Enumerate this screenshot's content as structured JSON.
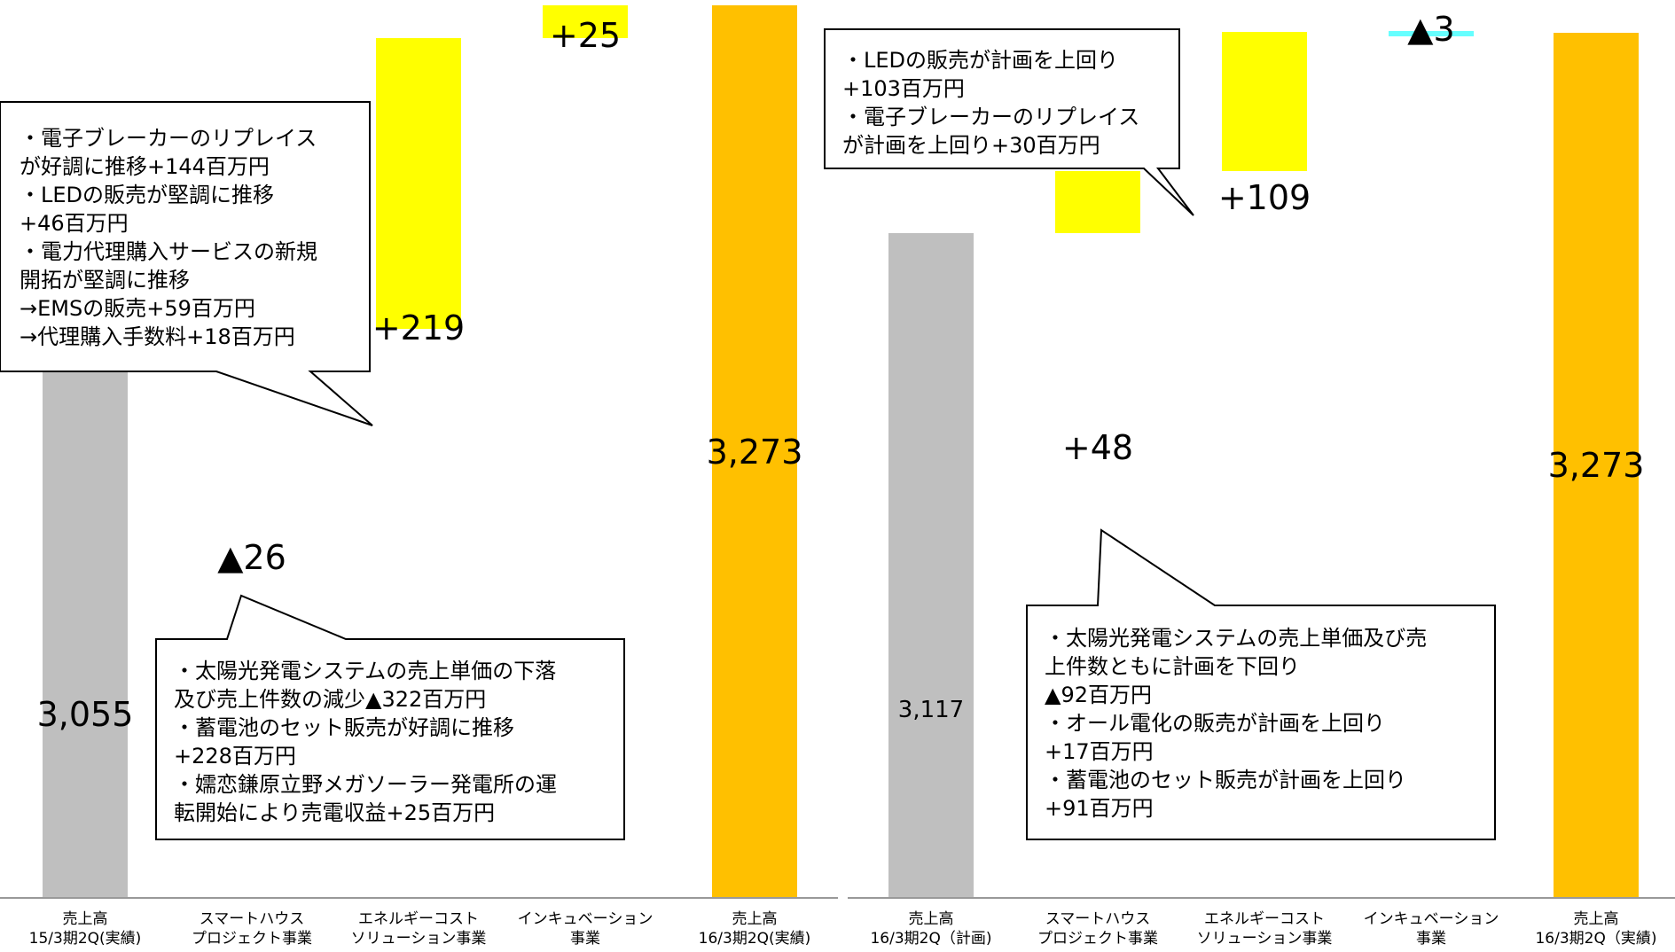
{
  "charts": [
    {
      "type": "bar",
      "subtype": "waterfall",
      "categories": [
        [
          "売上高",
          "15/3期2Q(実績)"
        ],
        [
          "スマートハウス",
          "プロジェクト事業"
        ],
        [
          "エネルギーコスト",
          "ソリューション事業"
        ],
        [
          "インキュベーション",
          "事業"
        ],
        [
          "売上高",
          "16/3期2Q(実績)"
        ]
      ],
      "values": [
        3055,
        -26,
        219,
        25,
        3273
      ],
      "labels": [
        "3,055",
        "▲26",
        "+219",
        "+25",
        "3,273"
      ],
      "kinds": [
        "total",
        "delta",
        "delta",
        "delta",
        "total"
      ],
      "callouts": [
        {
          "lines": [
            "・電子ブレーカーのリプレイス",
            "が好調に推移+144百万円",
            "・LEDの販売が堅調に推移",
            "+46百万円",
            "・電力代理購入サービスの新規",
            "開拓が堅調に推移",
            "→EMSの販売+59百万円",
            "→代理購入手数料+18百万円"
          ]
        },
        {
          "lines": [
            "・太陽光発電システムの売上単価の下落",
            "及び売上件数の減少▲322百万円",
            "・蓄電池のセット販売が好調に推移",
            "+228百万円",
            "・嬬恋鎌原立野メガソーラー発電所の運",
            "転開始により売電収益+25百万円"
          ]
        }
      ]
    },
    {
      "type": "bar",
      "subtype": "waterfall",
      "categories": [
        [
          "売上高",
          "16/3期2Q（計画)"
        ],
        [
          "スマートハウス",
          "プロジェクト事業"
        ],
        [
          "エネルギーコスト",
          "ソリューション事業"
        ],
        [
          "インキュベーション",
          "事業"
        ],
        [
          "売上高",
          "16/3期2Q（実績)"
        ]
      ],
      "values": [
        3117,
        48,
        109,
        -3,
        3273
      ],
      "labels": [
        "3,117",
        "+48",
        "+109",
        "▲3",
        "3,273"
      ],
      "kinds": [
        "total",
        "delta",
        "delta",
        "delta",
        "total"
      ],
      "callouts": [
        {
          "lines": [
            "・LEDの販売が計画を上回り",
            "+103百万円",
            "・電子ブレーカーのリプレイス",
            "が計画を上回り+30百万円"
          ]
        },
        {
          "lines": [
            "・太陽光発電システムの売上単価及び売",
            "上件数ともに計画を下回り",
            "▲92百万円",
            "・オール電化の販売が計画を上回り",
            "+17百万円",
            "・蓄電池のセット販売が計画を上回り",
            "+91百万円"
          ]
        }
      ]
    }
  ],
  "colors": {
    "total_start": "#bfbfbf",
    "total_end": "#ffc000",
    "increase": "#ffff00",
    "decrease": "#66ffff",
    "axis": "#999999",
    "callout_border": "#000000"
  }
}
